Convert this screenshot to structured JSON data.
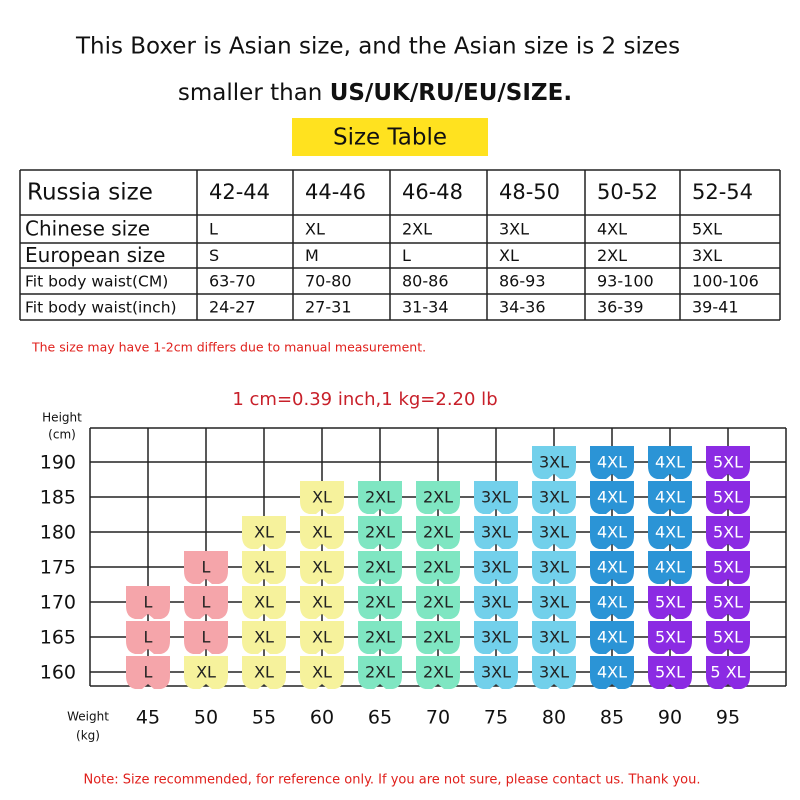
{
  "header": {
    "line1": "This Boxer is Asian size, and the Asian size is 2 sizes",
    "line2_plain": "smaller than ",
    "line2_bold": "US/UK/RU/EU/SIZE.",
    "badge": "Size Table"
  },
  "table": {
    "header": [
      "Russia size",
      "42-44",
      "44-46",
      "46-48",
      "48-50",
      "50-52",
      "52-54"
    ],
    "rows": [
      [
        "Chinese size",
        "L",
        "XL",
        "2XL",
        "3XL",
        "4XL",
        "5XL"
      ],
      [
        "European size",
        "S",
        "M",
        "L",
        "XL",
        "2XL",
        "3XL"
      ],
      [
        "Fit body waist(CM)",
        "63-70",
        "70-80",
        "80-86",
        "86-93",
        "93-100",
        "100-106"
      ],
      [
        "Fit body waist(inch)",
        "24-27",
        "27-31",
        "31-34",
        "34-36",
        "36-39",
        "39-41"
      ]
    ]
  },
  "note": "The size may have 1-2cm differs due to manual measurement.",
  "grid": {
    "title": "1 cm=0.39 inch,1 kg=2.20 lb",
    "y_label": [
      "Height",
      "(cm)"
    ],
    "x_label": [
      "Weight",
      "(kg)"
    ],
    "weights": [
      "45",
      "50",
      "55",
      "60",
      "65",
      "70",
      "75",
      "80",
      "85",
      "90",
      "95"
    ],
    "rows": [
      {
        "height": "190",
        "cells": [
          null,
          null,
          null,
          null,
          null,
          null,
          null,
          "3XL",
          "4XL",
          "4XL",
          "5XL"
        ]
      },
      {
        "height": "185",
        "cells": [
          null,
          null,
          null,
          "XL",
          "2XL",
          "2XL",
          "3XL",
          "3XL",
          "4XL",
          "4XL",
          "5XL"
        ]
      },
      {
        "height": "180",
        "cells": [
          null,
          null,
          "XL",
          "XL",
          "2XL",
          "2XL",
          "3XL",
          "3XL",
          "4XL",
          "4XL",
          "5XL"
        ]
      },
      {
        "height": "175",
        "cells": [
          null,
          "L",
          "XL",
          "XL",
          "2XL",
          "2XL",
          "3XL",
          "3XL",
          "4XL",
          "4XL",
          "5XL"
        ]
      },
      {
        "height": "170",
        "cells": [
          "L",
          "L",
          "XL",
          "XL",
          "2XL",
          "2XL",
          "3XL",
          "3XL",
          "4XL",
          "5XL",
          "5XL"
        ]
      },
      {
        "height": "165",
        "cells": [
          "L",
          "L",
          "XL",
          "XL",
          "2XL",
          "2XL",
          "3XL",
          "3XL",
          "4XL",
          "5XL",
          "5XL"
        ]
      },
      {
        "height": "160",
        "cells": [
          "L",
          "XL",
          "XL",
          "XL",
          "2XL",
          "2XL",
          "3XL",
          "3XL",
          "4XL",
          "5XL",
          "5 XL"
        ]
      }
    ],
    "size_colors": {
      "L": "#f5a5aa",
      "XL": "#f6f29c",
      "2XL": "#7fe6c2",
      "3XL": "#72d0eb",
      "4XL": "#2b94d6",
      "5XL": "#8b2be3",
      "5 XL": "#8b2be3"
    }
  },
  "footer": "Note: Size recommended, for reference only. If you are not sure, please contact us. Thank you."
}
